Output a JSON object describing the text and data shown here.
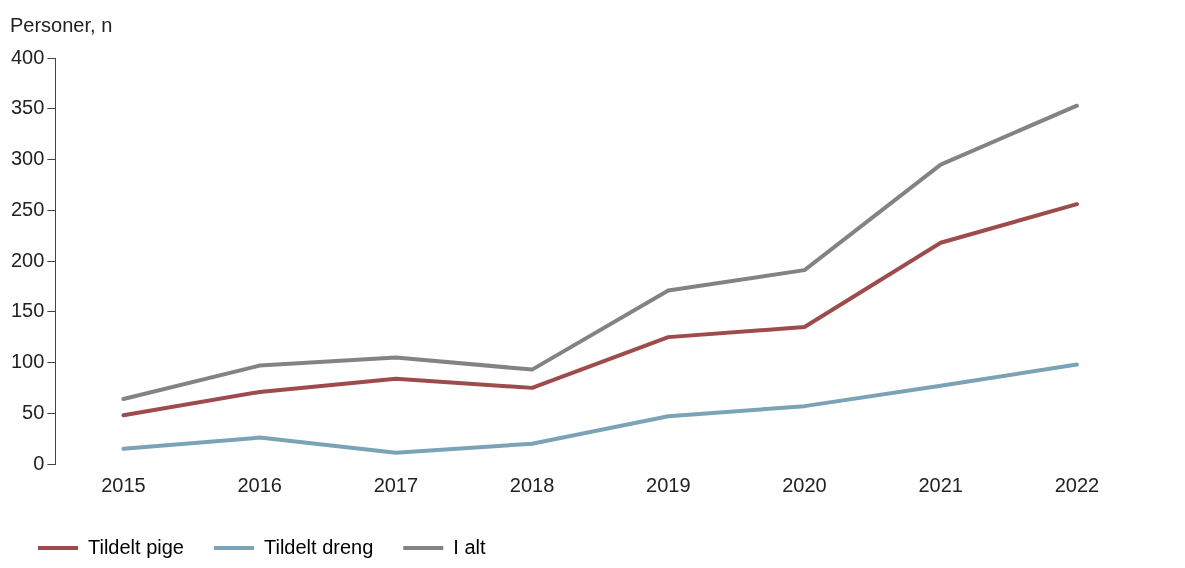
{
  "chart_data": {
    "type": "line",
    "ylabel": "Personer, n",
    "categories": [
      "2015",
      "2016",
      "2017",
      "2018",
      "2019",
      "2020",
      "2021",
      "2022"
    ],
    "series": [
      {
        "name": "Tildelt pige",
        "color": "#9e4b4b",
        "values": [
          48,
          71,
          84,
          75,
          125,
          135,
          218,
          256
        ]
      },
      {
        "name": "Tildelt dreng",
        "color": "#7aa3b6",
        "values": [
          15,
          26,
          11,
          20,
          47,
          57,
          77,
          98
        ]
      },
      {
        "name": "I alt",
        "color": "#838383",
        "values": [
          64,
          97,
          105,
          93,
          171,
          191,
          295,
          353
        ]
      }
    ],
    "ylim": [
      0,
      400
    ],
    "yticks": [
      0,
      50,
      100,
      150,
      200,
      250,
      300,
      350,
      400
    ],
    "grid": false,
    "legend": "bottom left",
    "marker": "none",
    "line_style": "solid"
  }
}
